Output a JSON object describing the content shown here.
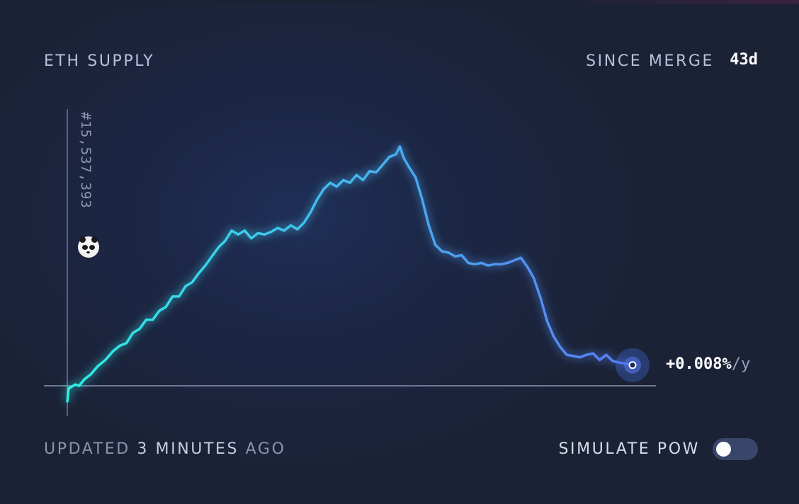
{
  "header": {
    "title": "ETH SUPPLY",
    "since_label": "SINCE MERGE",
    "days": "43d"
  },
  "footer": {
    "updated_prefix": "UPDATED",
    "updated_value": "3 MINUTES",
    "updated_suffix": "AGO",
    "simulate_label": "SIMULATE PoW",
    "simulate_on": false
  },
  "chart_data": {
    "type": "line",
    "title": "ETH SUPPLY",
    "y_baseline_label": "#15,537,393",
    "current_rate": "+0.008%",
    "current_rate_unit": "/y",
    "xlim": [
      0,
      43
    ],
    "ylim": [
      -0.7,
      11.5
    ],
    "series": [
      {
        "color_start": "#2ef0e6",
        "color_end": "#5a7cf5",
        "values": [
          [
            0.0,
            -0.6
          ],
          [
            0.1,
            -0.1
          ],
          [
            0.3,
            -0.05
          ],
          [
            0.6,
            0.05
          ],
          [
            0.9,
            0.0
          ],
          [
            1.3,
            0.25
          ],
          [
            1.8,
            0.45
          ],
          [
            2.3,
            0.75
          ],
          [
            2.9,
            1.0
          ],
          [
            3.5,
            1.35
          ],
          [
            4.0,
            1.55
          ],
          [
            4.5,
            1.65
          ],
          [
            5.0,
            2.05
          ],
          [
            5.5,
            2.2
          ],
          [
            6.0,
            2.55
          ],
          [
            6.5,
            2.55
          ],
          [
            7.0,
            2.9
          ],
          [
            7.5,
            3.05
          ],
          [
            8.0,
            3.45
          ],
          [
            8.5,
            3.45
          ],
          [
            9.0,
            3.85
          ],
          [
            9.5,
            4.0
          ],
          [
            10.0,
            4.35
          ],
          [
            10.5,
            4.65
          ],
          [
            11.0,
            5.0
          ],
          [
            11.5,
            5.35
          ],
          [
            12.0,
            5.6
          ],
          [
            12.5,
            6.0
          ],
          [
            13.0,
            5.85
          ],
          [
            13.5,
            6.0
          ],
          [
            14.0,
            5.7
          ],
          [
            14.5,
            5.9
          ],
          [
            15.0,
            5.85
          ],
          [
            15.5,
            5.95
          ],
          [
            16.0,
            6.1
          ],
          [
            16.5,
            6.0
          ],
          [
            17.0,
            6.2
          ],
          [
            17.5,
            6.05
          ],
          [
            18.0,
            6.3
          ],
          [
            18.5,
            6.7
          ],
          [
            19.0,
            7.2
          ],
          [
            19.5,
            7.6
          ],
          [
            20.0,
            7.85
          ],
          [
            20.5,
            7.7
          ],
          [
            21.0,
            7.95
          ],
          [
            21.5,
            7.85
          ],
          [
            22.0,
            8.15
          ],
          [
            22.5,
            7.95
          ],
          [
            23.0,
            8.3
          ],
          [
            23.5,
            8.25
          ],
          [
            24.0,
            8.55
          ],
          [
            24.5,
            8.85
          ],
          [
            25.0,
            8.95
          ],
          [
            25.3,
            9.25
          ],
          [
            25.6,
            8.8
          ],
          [
            26.0,
            8.45
          ],
          [
            26.5,
            8.05
          ],
          [
            27.0,
            7.2
          ],
          [
            27.5,
            6.2
          ],
          [
            28.0,
            5.45
          ],
          [
            28.5,
            5.2
          ],
          [
            29.0,
            5.15
          ],
          [
            29.5,
            5.0
          ],
          [
            30.0,
            5.05
          ],
          [
            30.5,
            4.75
          ],
          [
            31.0,
            4.7
          ],
          [
            31.5,
            4.75
          ],
          [
            32.0,
            4.65
          ],
          [
            32.5,
            4.7
          ],
          [
            33.0,
            4.7
          ],
          [
            33.5,
            4.75
          ],
          [
            34.0,
            4.85
          ],
          [
            34.5,
            4.95
          ],
          [
            35.0,
            4.6
          ],
          [
            35.5,
            4.15
          ],
          [
            36.0,
            3.4
          ],
          [
            36.5,
            2.5
          ],
          [
            37.0,
            1.9
          ],
          [
            37.5,
            1.5
          ],
          [
            38.0,
            1.2
          ],
          [
            38.5,
            1.15
          ],
          [
            39.0,
            1.1
          ],
          [
            39.5,
            1.2
          ],
          [
            40.0,
            1.25
          ],
          [
            40.5,
            1.0
          ],
          [
            41.0,
            1.2
          ],
          [
            41.5,
            0.95
          ],
          [
            42.0,
            0.9
          ],
          [
            42.5,
            0.85
          ],
          [
            43.0,
            0.8
          ]
        ]
      }
    ]
  }
}
